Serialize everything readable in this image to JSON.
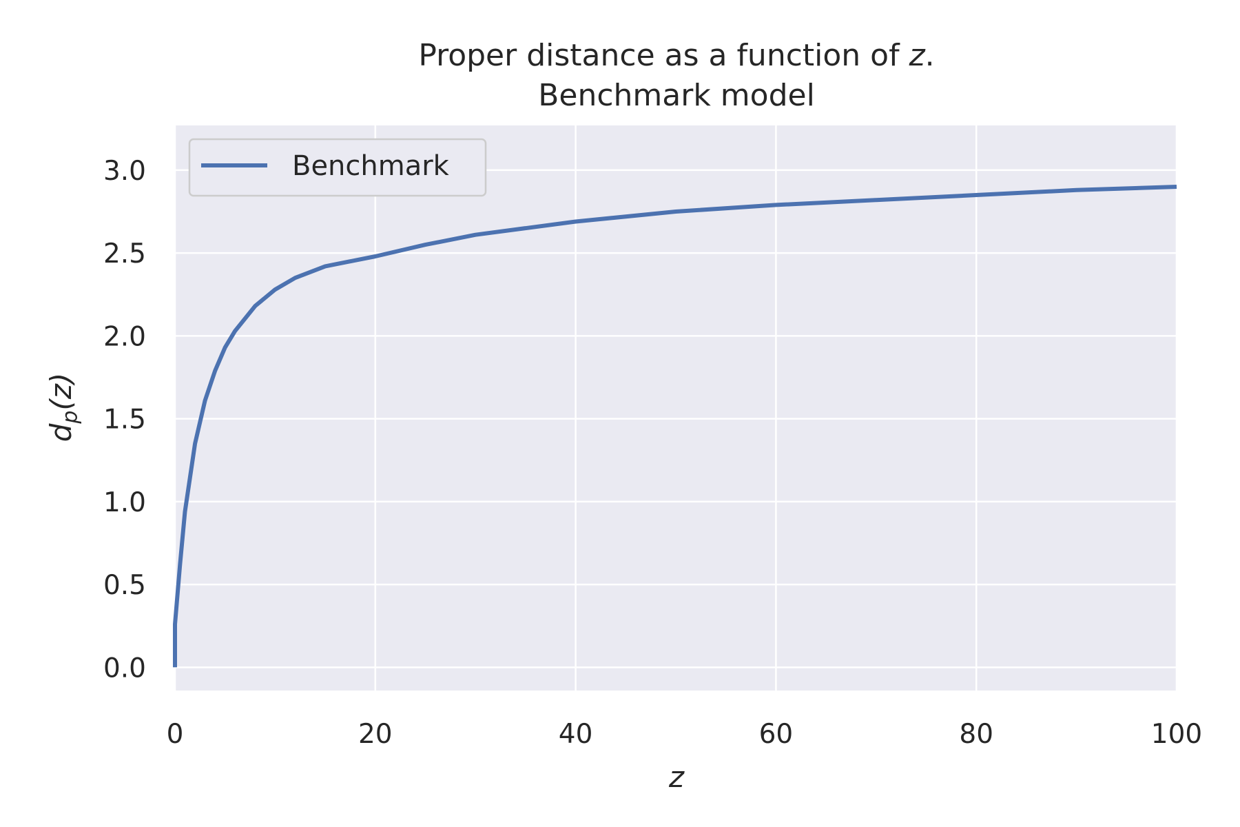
{
  "chart_data": {
    "type": "line",
    "title_line1_prefix": "Proper distance as a function of ",
    "title_line1_var": "z",
    "title_line1_suffix": ".",
    "title_line2": "Benchmark model",
    "xlabel": "z",
    "ylabel_main": "d",
    "ylabel_sub": "p",
    "ylabel_arg": "(z)",
    "xlim": [
      0,
      100
    ],
    "ylim": [
      -0.14,
      3.27
    ],
    "xticks": [
      0,
      20,
      40,
      60,
      80,
      100
    ],
    "xtick_labels": [
      "0",
      "20",
      "40",
      "60",
      "80",
      "100"
    ],
    "yticks": [
      0.0,
      0.5,
      1.0,
      1.5,
      2.0,
      2.5,
      3.0
    ],
    "ytick_labels": [
      "0.0",
      "0.5",
      "1.0",
      "1.5",
      "2.0",
      "2.5",
      "3.0"
    ],
    "grid": true,
    "legend_position": "top-left",
    "series": [
      {
        "name": "Benchmark",
        "color": "#4c72b0",
        "x": [
          0,
          0.001,
          0.5,
          1,
          2,
          3,
          4,
          5,
          6,
          8,
          10,
          12,
          15,
          20,
          25,
          30,
          40,
          50,
          60,
          70,
          80,
          90,
          100
        ],
        "y": [
          0.0,
          0.26,
          0.62,
          0.94,
          1.35,
          1.61,
          1.79,
          1.93,
          2.03,
          2.18,
          2.28,
          2.35,
          2.42,
          2.48,
          2.55,
          2.61,
          2.69,
          2.75,
          2.79,
          2.82,
          2.85,
          2.88,
          2.9
        ]
      }
    ]
  }
}
